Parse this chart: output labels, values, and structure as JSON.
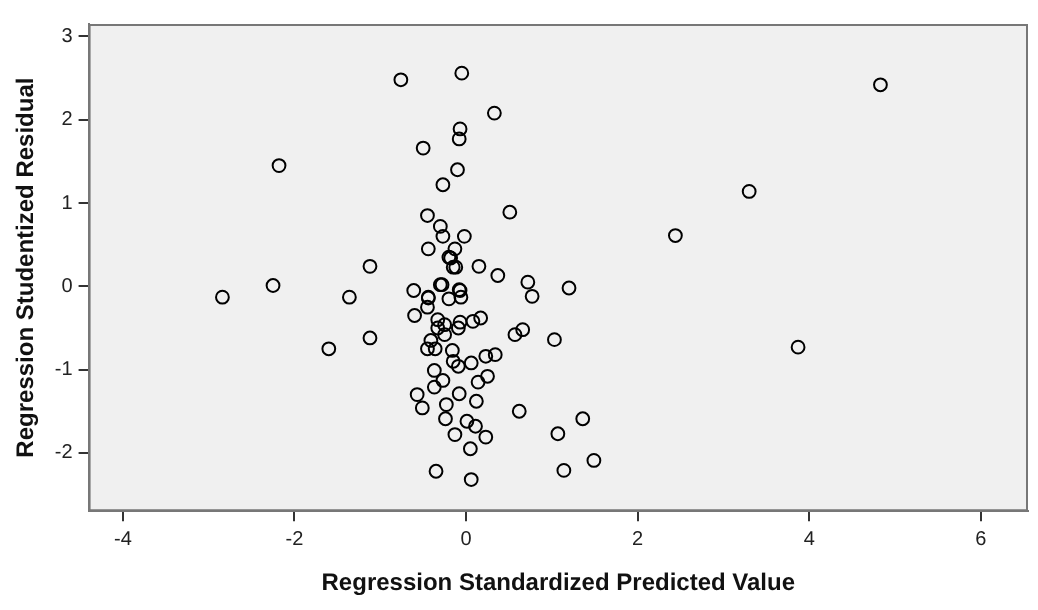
{
  "chart_data": {
    "type": "scatter",
    "xlabel": "Regression Standardized Predicted Value",
    "ylabel": "Regression Studentized Residual",
    "xlim": [
      -4.4,
      6.55
    ],
    "ylim": [
      -2.7,
      3.15
    ],
    "xticks": [
      -4,
      -2,
      0,
      2,
      4,
      6
    ],
    "yticks": [
      -2,
      -1,
      0,
      1,
      2,
      3
    ],
    "grid": false,
    "legend": false,
    "marker": "circle",
    "series": [
      {
        "color": "#000000",
        "x": [
          -0.76,
          -0.05,
          0.33,
          -0.07,
          -0.08,
          -0.5,
          -2.18,
          -0.1,
          -0.27,
          0.51,
          -0.45,
          -0.3,
          -0.27,
          -0.02,
          -0.44,
          -0.13,
          -0.2,
          -1.12,
          0.15,
          -0.15,
          0.37,
          0.72,
          -2.25,
          -2.84,
          -1.36,
          -1.6,
          -1.12,
          -0.61,
          -0.44,
          -0.6,
          -0.45,
          -0.3,
          -0.07,
          0.77,
          -0.33,
          -0.25,
          -0.41,
          -0.45,
          -0.36,
          -0.09,
          0.08,
          0.17,
          0.57,
          0.66,
          1.03,
          -0.16,
          -0.15,
          -0.09,
          0.06,
          0.23,
          0.34,
          -0.37,
          -0.27,
          -0.37,
          0.25,
          0.14,
          -0.57,
          -0.51,
          -0.23,
          -0.08,
          0.12,
          -0.24,
          0.01,
          0.11,
          0.62,
          0.23,
          -0.13,
          0.05,
          -0.35,
          0.06,
          1.07,
          1.14,
          1.2,
          -0.12,
          -0.18,
          -0.08,
          -0.28,
          -0.2,
          -0.06,
          -0.44,
          -0.33,
          -0.25,
          -0.07,
          1.36,
          1.49,
          2.44,
          3.3,
          3.87,
          4.83
        ],
        "values": [
          2.48,
          2.56,
          2.08,
          1.89,
          1.77,
          1.66,
          1.45,
          1.4,
          1.22,
          0.89,
          0.85,
          0.72,
          0.6,
          0.6,
          0.45,
          0.45,
          0.35,
          0.24,
          0.24,
          0.23,
          0.13,
          0.05,
          0.01,
          -0.13,
          -0.13,
          -0.75,
          -0.62,
          -0.05,
          -0.13,
          -0.35,
          -0.25,
          0.02,
          -0.05,
          -0.12,
          -0.5,
          -0.58,
          -0.65,
          -0.75,
          -0.75,
          -0.5,
          -0.42,
          -0.38,
          -0.58,
          -0.52,
          -0.64,
          -0.77,
          -0.9,
          -0.96,
          -0.92,
          -0.84,
          -0.82,
          -1.01,
          -1.13,
          -1.21,
          -1.08,
          -1.15,
          -1.3,
          -1.46,
          -1.42,
          -1.29,
          -1.38,
          -1.59,
          -1.62,
          -1.68,
          -1.5,
          -1.81,
          -1.78,
          -1.95,
          -2.22,
          -2.32,
          -1.77,
          -2.21,
          -0.02,
          0.23,
          0.34,
          -0.04,
          0.02,
          -0.15,
          -0.13,
          -0.14,
          -0.4,
          -0.46,
          -0.43,
          -1.59,
          -2.09,
          0.61,
          1.14,
          -0.73,
          2.42
        ]
      }
    ]
  }
}
